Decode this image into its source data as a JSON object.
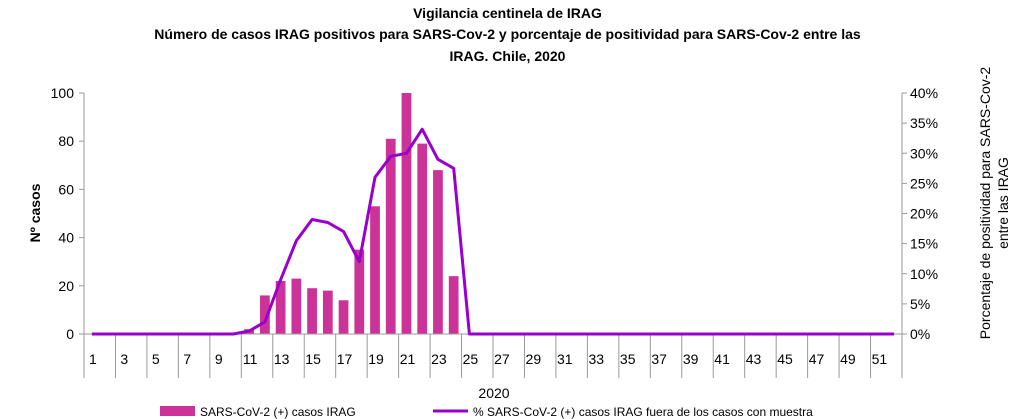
{
  "chart_data": {
    "type": "bar+line",
    "title": "Vigilancia centinela de IRAG",
    "subtitle_line1": "Número de casos IRAG positivos para SARS-Cov-2 y porcentaje de positividad para SARS-Cov-2 entre las",
    "subtitle_line2": "IRAG. Chile, 2020",
    "xlabel": "2020",
    "ylabel": "Nº casos",
    "y2label_line1": "Porcentaje de positividad para SARS-Cov-2",
    "y2label_line2": "entre las IRAG",
    "ylim": [
      0,
      100
    ],
    "y2lim": [
      0,
      40
    ],
    "y_ticks": [
      0,
      20,
      40,
      60,
      80,
      100
    ],
    "y2_ticks": [
      "0%",
      "5%",
      "10%",
      "15%",
      "20%",
      "25%",
      "30%",
      "35%",
      "40%"
    ],
    "x": [
      1,
      2,
      3,
      4,
      5,
      6,
      7,
      8,
      9,
      10,
      11,
      12,
      13,
      14,
      15,
      16,
      17,
      18,
      19,
      20,
      21,
      22,
      23,
      24,
      25,
      26,
      27,
      28,
      29,
      30,
      31,
      32,
      33,
      34,
      35,
      36,
      37,
      38,
      39,
      40,
      41,
      42,
      43,
      44,
      45,
      46,
      47,
      48,
      49,
      50,
      51,
      52
    ],
    "x_tick_labels": [
      "1",
      "3",
      "5",
      "7",
      "9",
      "11",
      "13",
      "15",
      "17",
      "19",
      "21",
      "23",
      "25",
      "27",
      "29",
      "31",
      "33",
      "35",
      "37",
      "39",
      "41",
      "43",
      "45",
      "47",
      "49",
      "51"
    ],
    "series": [
      {
        "name": "SARS-CoV-2 (+) casos IRAG",
        "type": "bar",
        "color": "#cc3399",
        "values": [
          0,
          0,
          0,
          0,
          0,
          0,
          0,
          0,
          0,
          0,
          2,
          16,
          22,
          23,
          19,
          18,
          14,
          35,
          53,
          81,
          100,
          79,
          68,
          24,
          0,
          0,
          0,
          0,
          0,
          0,
          0,
          0,
          0,
          0,
          0,
          0,
          0,
          0,
          0,
          0,
          0,
          0,
          0,
          0,
          0,
          0,
          0,
          0,
          0,
          0,
          0,
          0
        ]
      },
      {
        "name": "% SARS-CoV-2 (+) casos IRAG fuera de los casos con muestra",
        "type": "line",
        "color": "#9900cc",
        "axis": "right",
        "values": [
          0,
          0,
          0,
          0,
          0,
          0,
          0,
          0,
          0,
          0,
          0.5,
          2,
          9,
          15.5,
          19,
          18.5,
          17,
          12,
          26,
          29.5,
          30,
          34,
          29,
          27.5,
          0,
          0,
          0,
          0,
          0,
          0,
          0,
          0,
          0,
          0,
          0,
          0,
          0,
          0,
          0,
          0,
          0,
          0,
          0,
          0,
          0,
          0,
          0,
          0,
          0,
          0,
          0,
          0
        ]
      }
    ]
  }
}
